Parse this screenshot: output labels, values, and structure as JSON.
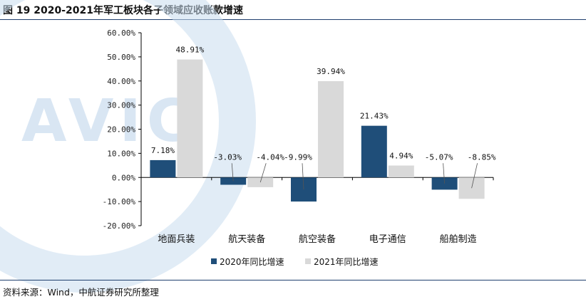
{
  "title": "图 19 2020-2021年军工板块各子领域应收账款增速",
  "source": "资料来源：Wind，中航证券研究所整理",
  "watermark": "AVIC",
  "colors": {
    "series_2020": "#1f4e79",
    "series_2021": "#d9d9d9",
    "axis": "#000000",
    "watermark": "#c9dcef",
    "leader": "#555555"
  },
  "chart_data": {
    "type": "bar",
    "title": "2020-2021年军工板块各子领域应收账款增速",
    "xlabel": "",
    "ylabel": "",
    "ylim": [
      -20,
      60
    ],
    "y_ticks": [
      60,
      50,
      40,
      30,
      20,
      10,
      0,
      -10,
      -20
    ],
    "y_tick_labels": [
      "60.00%",
      "50.00%",
      "40.00%",
      "30.00%",
      "20.00%",
      "10.00%",
      "0.00%",
      "-10.00%",
      "-20.00%"
    ],
    "categories": [
      "地面兵装",
      "航天装备",
      "航空装备",
      "电子通信",
      "船舶制造"
    ],
    "series": [
      {
        "name": "2020年同比增速",
        "values": [
          7.18,
          -3.03,
          -9.99,
          21.43,
          -5.07
        ],
        "labels": [
          "7.18%",
          "-3.03%",
          "-9.99%",
          "21.43%",
          "-5.07%"
        ]
      },
      {
        "name": "2021年同比增速",
        "values": [
          48.91,
          -4.04,
          39.94,
          4.94,
          -8.85
        ],
        "labels": [
          "48.91%",
          "-4.04%",
          "39.94%",
          "4.94%",
          "-8.85%"
        ]
      }
    ],
    "legend_position": "bottom-center",
    "grid": false
  }
}
